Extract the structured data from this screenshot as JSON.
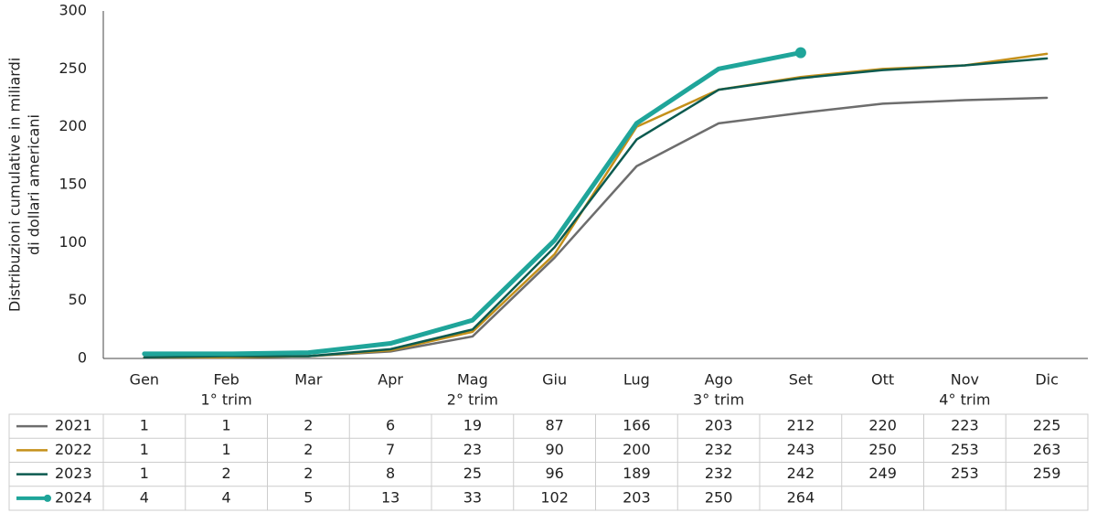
{
  "chart_data": {
    "type": "line",
    "ylabel": [
      "Distribuzioni cumulative in miliardi",
      "di dollari americani"
    ],
    "categories": [
      "Gen",
      "Feb",
      "Mar",
      "Apr",
      "Mag",
      "Giu",
      "Lug",
      "Ago",
      "Set",
      "Ott",
      "Nov",
      "Dic"
    ],
    "quarters": [
      null,
      "1° trim",
      null,
      null,
      "2° trim",
      null,
      null,
      "3° trim",
      null,
      null,
      "4° trim",
      null
    ],
    "ylim": [
      0,
      300
    ],
    "yticks": [
      0,
      50,
      100,
      150,
      200,
      250,
      300
    ],
    "grid": false,
    "series": [
      {
        "name": "2021",
        "color": "#6d6d6d",
        "values": [
          1,
          1,
          2,
          6,
          19,
          87,
          166,
          203,
          212,
          220,
          223,
          225
        ]
      },
      {
        "name": "2022",
        "color": "#c4901a",
        "values": [
          1,
          1,
          2,
          7,
          23,
          90,
          200,
          232,
          243,
          250,
          253,
          263
        ]
      },
      {
        "name": "2023",
        "color": "#0b5a4f",
        "values": [
          1,
          2,
          2,
          8,
          25,
          96,
          189,
          232,
          242,
          249,
          253,
          259
        ]
      },
      {
        "name": "2024",
        "color": "#1fa59a",
        "values": [
          4,
          4,
          5,
          13,
          33,
          102,
          203,
          250,
          264,
          null,
          null,
          null
        ]
      }
    ]
  }
}
